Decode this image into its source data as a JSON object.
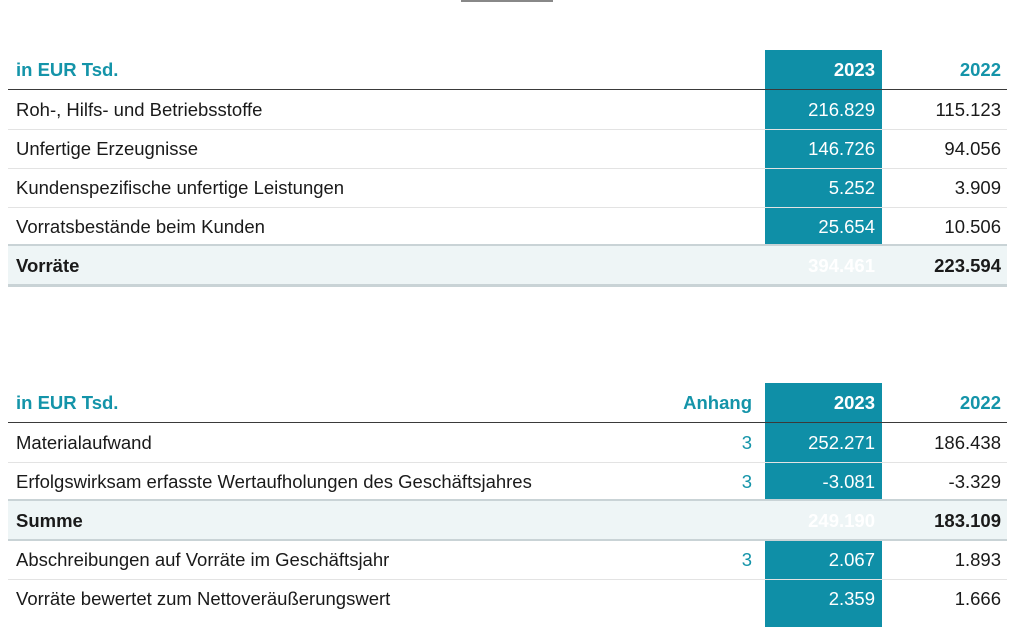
{
  "table1": {
    "header": {
      "label": "in EUR Tsd.",
      "col2023": "2023",
      "col2022": "2022"
    },
    "rows": [
      {
        "label": "Roh-, Hilfs- und Betriebsstoffe",
        "v2023": "216.829",
        "v2022": "115.123"
      },
      {
        "label": "Unfertige Erzeugnisse",
        "v2023": "146.726",
        "v2022": "94.056"
      },
      {
        "label": "Kundenspezifische unfertige Leistungen",
        "v2023": "5.252",
        "v2022": "3.909"
      },
      {
        "label": "Vorratsbestände beim Kunden",
        "v2023": "25.654",
        "v2022": "10.506"
      }
    ],
    "total": {
      "label": "Vorräte",
      "v2023": "394.461",
      "v2022": "223.594"
    }
  },
  "table2": {
    "header": {
      "label": "in EUR Tsd.",
      "anhang": "Anhang",
      "col2023": "2023",
      "col2022": "2022"
    },
    "rows": [
      {
        "label": "Materialaufwand",
        "anhang": "3",
        "v2023": "252.271",
        "v2022": "186.438"
      },
      {
        "label": "Erfolgswirksam erfasste Wertaufholungen des Geschäftsjahres",
        "anhang": "3",
        "v2023": "-3.081",
        "v2022": "-3.329"
      }
    ],
    "total": {
      "label": "Summe",
      "v2023": "249.190",
      "v2022": "183.109"
    },
    "after": [
      {
        "label": "Abschreibungen auf Vorräte im Geschäftsjahr",
        "anhang": "3",
        "v2023": "2.067",
        "v2022": "1.893"
      },
      {
        "label": "Vorräte bewertet zum Nettoveräußerungswert",
        "anhang": "",
        "v2023": "2.359",
        "v2022": "1.666"
      }
    ]
  },
  "colors": {
    "accent": "#0f8fa7",
    "accent_text": "#1494a9",
    "total_bg": "#eef5f6"
  }
}
